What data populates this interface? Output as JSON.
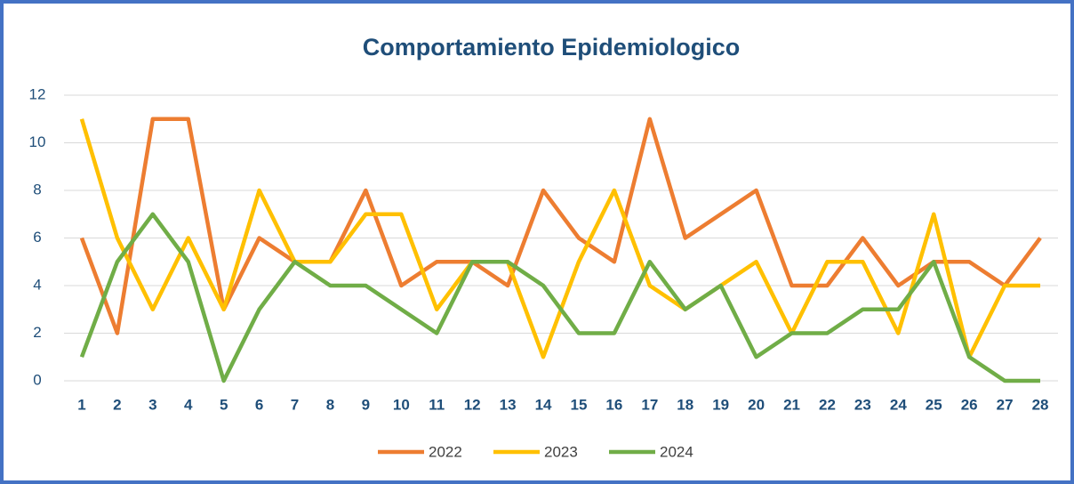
{
  "chart_data": {
    "type": "line",
    "title": "Comportamiento Epidemiologico",
    "categories": [
      "1",
      "2",
      "3",
      "4",
      "5",
      "6",
      "7",
      "8",
      "9",
      "10",
      "11",
      "12",
      "13",
      "14",
      "15",
      "16",
      "17",
      "18",
      "19",
      "20",
      "21",
      "22",
      "23",
      "24",
      "25",
      "26",
      "27",
      "28"
    ],
    "series": [
      {
        "name": "2022",
        "color": "#ed7d31",
        "values": [
          6,
          2,
          11,
          11,
          3,
          6,
          5,
          5,
          8,
          4,
          5,
          5,
          4,
          8,
          6,
          5,
          11,
          6,
          7,
          8,
          4,
          4,
          6,
          4,
          5,
          5,
          4,
          6
        ]
      },
      {
        "name": "2023",
        "color": "#ffc000",
        "values": [
          11,
          6,
          3,
          6,
          3,
          8,
          5,
          5,
          7,
          7,
          3,
          5,
          5,
          1,
          5,
          8,
          4,
          3,
          4,
          5,
          2,
          5,
          5,
          2,
          7,
          1,
          4,
          4
        ]
      },
      {
        "name": "2024",
        "color": "#70ad47",
        "values": [
          1,
          5,
          7,
          5,
          0,
          3,
          5,
          4,
          4,
          3,
          2,
          5,
          5,
          4,
          2,
          2,
          5,
          3,
          4,
          1,
          2,
          2,
          3,
          3,
          5,
          1,
          0,
          0
        ]
      }
    ],
    "ylim": [
      0,
      12
    ],
    "yticks": [
      0,
      2,
      4,
      6,
      8,
      10,
      12
    ],
    "grid": true,
    "legend": "bottom"
  }
}
